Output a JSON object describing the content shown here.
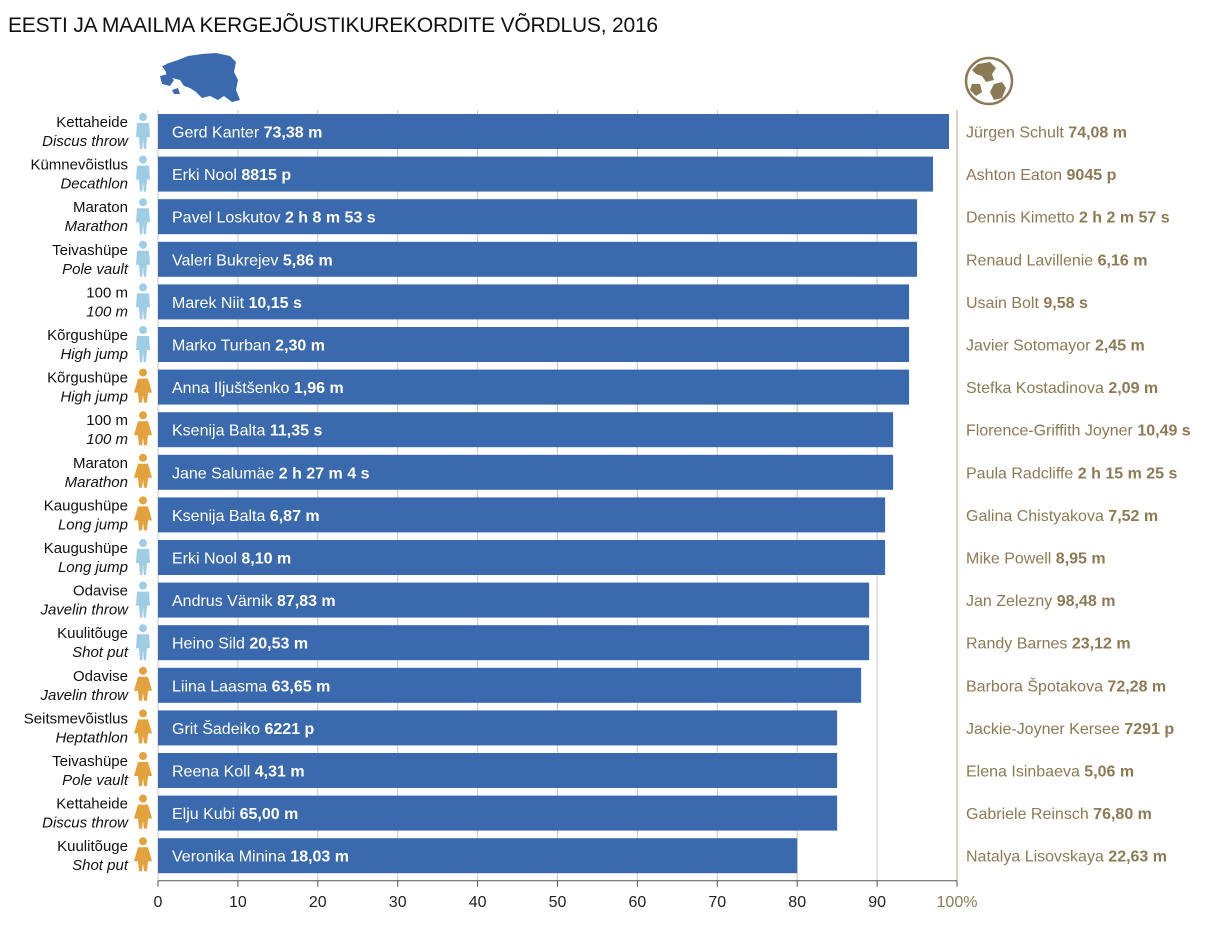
{
  "title": "EESTI JA MAAILMA KERGEJÕUSTIKUREKORDITE VÕRDLUS, 2016",
  "colors": {
    "bar": "#3a6aad",
    "man_icon": "#9fcde6",
    "woman_icon": "#e3a23c",
    "world_text": "#8c7a55",
    "axis": "#555555",
    "divider": "#b7a98a"
  },
  "icons": {
    "estonia": "estonia-map-icon",
    "world": "globe-icon",
    "man": "man-icon",
    "woman": "woman-icon"
  },
  "chart_data": {
    "type": "bar",
    "orientation": "horizontal",
    "x_ticks": [
      "0",
      "10",
      "20",
      "30",
      "40",
      "50",
      "60",
      "70",
      "80",
      "90",
      "100%"
    ],
    "xlim": [
      0,
      100
    ],
    "grid": true,
    "rows": [
      {
        "event_et": "Kettaheide",
        "event_en": "Discus throw",
        "gender": "man",
        "estonian_name": "Gerd Kanter",
        "estonian_record": "73,38 m",
        "world_name": "Jürgen Schult",
        "world_record": "74,08 m",
        "value": 99
      },
      {
        "event_et": "Kümnevõistlus",
        "event_en": "Decathlon",
        "gender": "man",
        "estonian_name": "Erki Nool",
        "estonian_record": "8815 p",
        "world_name": "Ashton Eaton",
        "world_record": "9045 p",
        "value": 97
      },
      {
        "event_et": "Maraton",
        "event_en": "Marathon",
        "gender": "man",
        "estonian_name": "Pavel Loskutov",
        "estonian_record": "2 h 8 m 53 s",
        "world_name": "Dennis Kimetto",
        "world_record": "2 h 2 m 57 s",
        "value": 95
      },
      {
        "event_et": "Teivashüpe",
        "event_en": "Pole vault",
        "gender": "man",
        "estonian_name": "Valeri Bukrejev",
        "estonian_record": "5,86 m",
        "world_name": "Renaud Lavillenie",
        "world_record": "6,16 m",
        "value": 95
      },
      {
        "event_et": "100 m",
        "event_en": "100 m",
        "gender": "man",
        "estonian_name": "Marek Niit",
        "estonian_record": "10,15 s",
        "world_name": "Usain Bolt",
        "world_record": "9,58 s",
        "value": 94
      },
      {
        "event_et": "Kõrgushüpe",
        "event_en": "High jump",
        "gender": "man",
        "estonian_name": "Marko Turban",
        "estonian_record": "2,30 m",
        "world_name": "Javier Sotomayor",
        "world_record": "2,45 m",
        "value": 94
      },
      {
        "event_et": "Kõrgushüpe",
        "event_en": "High jump",
        "gender": "woman",
        "estonian_name": "Anna Iljuštšenko",
        "estonian_record": "1,96 m",
        "world_name": "Stefka Kostadinova",
        "world_record": "2,09 m",
        "value": 94
      },
      {
        "event_et": "100 m",
        "event_en": "100 m",
        "gender": "woman",
        "estonian_name": "Ksenija Balta",
        "estonian_record": "11,35 s",
        "world_name": "Florence-Griffith Joyner",
        "world_record": "10,49 s",
        "value": 92
      },
      {
        "event_et": "Maraton",
        "event_en": "Marathon",
        "gender": "woman",
        "estonian_name": "Jane Salumäe",
        "estonian_record": "2 h 27 m 4 s",
        "world_name": "Paula Radcliffe",
        "world_record": "2 h 15 m 25 s",
        "value": 92
      },
      {
        "event_et": "Kaugushüpe",
        "event_en": "Long jump",
        "gender": "woman",
        "estonian_name": "Ksenija Balta",
        "estonian_record": "6,87 m",
        "world_name": "Galina Chistyakova",
        "world_record": "7,52 m",
        "value": 91
      },
      {
        "event_et": "Kaugushüpe",
        "event_en": "Long jump",
        "gender": "man",
        "estonian_name": "Erki Nool",
        "estonian_record": "8,10 m",
        "world_name": "Mike Powell",
        "world_record": "8,95 m",
        "value": 91
      },
      {
        "event_et": "Odavise",
        "event_en": "Javelin throw",
        "gender": "man",
        "estonian_name": "Andrus Värnik",
        "estonian_record": "87,83 m",
        "world_name": "Jan Zelezny",
        "world_record": "98,48 m",
        "value": 89
      },
      {
        "event_et": "Kuulitõuge",
        "event_en": "Shot put",
        "gender": "man",
        "estonian_name": "Heino Sild",
        "estonian_record": "20,53 m",
        "world_name": "Randy Barnes",
        "world_record": "23,12 m",
        "value": 89
      },
      {
        "event_et": "Odavise",
        "event_en": "Javelin throw",
        "gender": "woman",
        "estonian_name": "Liina Laasma",
        "estonian_record": "63,65 m",
        "world_name": "Barbora Špotakova",
        "world_record": "72,28 m",
        "value": 88
      },
      {
        "event_et": "Seitsmevõistlus",
        "event_en": "Heptathlon",
        "gender": "woman",
        "estonian_name": "Grit Šadeiko",
        "estonian_record": "6221 p",
        "world_name": "Jackie-Joyner Kersee",
        "world_record": "7291 p",
        "value": 85
      },
      {
        "event_et": "Teivashüpe",
        "event_en": "Pole vault",
        "gender": "woman",
        "estonian_name": "Reena Koll",
        "estonian_record": "4,31 m",
        "world_name": "Elena Isinbaeva",
        "world_record": "5,06 m",
        "value": 85
      },
      {
        "event_et": "Kettaheide",
        "event_en": "Discus throw",
        "gender": "woman",
        "estonian_name": "Elju Kubi",
        "estonian_record": "65,00 m",
        "world_name": "Gabriele Reinsch",
        "world_record": "76,80 m",
        "value": 85
      },
      {
        "event_et": "Kuulitõuge",
        "event_en": "Shot put",
        "gender": "woman",
        "estonian_name": "Veronika Minina",
        "estonian_record": "18,03 m",
        "world_name": "Natalya Lisovskaya",
        "world_record": "22,63 m",
        "value": 80
      }
    ]
  }
}
